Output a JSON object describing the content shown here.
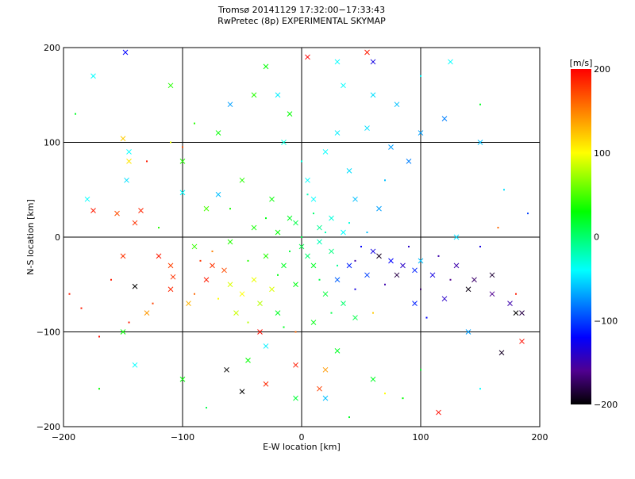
{
  "chart_data": {
    "type": "scatter",
    "title": "Tromsø 20141129 17:32:00−17:33:43",
    "subtitle": "RwPretec (8p) EXPERIMENTAL SKYMAP",
    "xlabel": "E-W location [km]",
    "ylabel": "N-S location [km]",
    "xlim": [
      -200,
      200
    ],
    "ylim": [
      -200,
      200
    ],
    "xticks": [
      "−200",
      "−100",
      "0",
      "100",
      "200"
    ],
    "yticks": [
      "−200",
      "−100",
      "0",
      "100",
      "200"
    ],
    "xtick_values": [
      -200,
      -100,
      0,
      100,
      200
    ],
    "ytick_values": [
      -200,
      -100,
      0,
      100,
      200
    ],
    "grid": true,
    "colorbar": {
      "label": "[m/s]",
      "range": [
        -200,
        200
      ],
      "ticks": [
        "200",
        "100",
        "0",
        "−100",
        "−200"
      ],
      "tick_values": [
        200,
        100,
        0,
        -100,
        -200
      ],
      "stops": [
        [
          -200,
          "#000000"
        ],
        [
          -160,
          "#500090"
        ],
        [
          -120,
          "#0000ff"
        ],
        [
          -40,
          "#00ffff"
        ],
        [
          30,
          "#00ff00"
        ],
        [
          100,
          "#ffff00"
        ],
        [
          150,
          "#ff8000"
        ],
        [
          200,
          "#ff0000"
        ]
      ]
    },
    "point_format": [
      "x_km",
      "y_km",
      "velocity_ms",
      "marker"
    ],
    "points": [
      [
        -175,
        28,
        190,
        "x"
      ],
      [
        -155,
        25,
        170,
        "x"
      ],
      [
        -140,
        15,
        180,
        "x"
      ],
      [
        -135,
        28,
        185,
        "x"
      ],
      [
        -120,
        -20,
        190,
        "x"
      ],
      [
        -110,
        -30,
        175,
        "x"
      ],
      [
        -108,
        -42,
        180,
        "x"
      ],
      [
        -110,
        -55,
        185,
        "x"
      ],
      [
        -80,
        -45,
        190,
        "x"
      ],
      [
        -75,
        -30,
        180,
        "x"
      ],
      [
        -65,
        -35,
        170,
        "x"
      ],
      [
        -160,
        -45,
        190,
        "."
      ],
      [
        5,
        190,
        200,
        "x"
      ],
      [
        55,
        195,
        190,
        "x"
      ],
      [
        -35,
        -100,
        195,
        "x"
      ],
      [
        -5,
        -135,
        190,
        "x"
      ],
      [
        15,
        -160,
        175,
        "x"
      ],
      [
        -30,
        -155,
        185,
        "x"
      ],
      [
        115,
        -185,
        195,
        "x"
      ],
      [
        185,
        -110,
        195,
        "x"
      ],
      [
        -170,
        -105,
        195,
        "."
      ],
      [
        -150,
        -20,
        180,
        "x"
      ],
      [
        -185,
        -75,
        190,
        "."
      ],
      [
        -125,
        -70,
        175,
        "."
      ],
      [
        -85,
        -25,
        180,
        "."
      ],
      [
        -90,
        -60,
        160,
        "."
      ],
      [
        -145,
        -90,
        190,
        "."
      ],
      [
        -130,
        80,
        190,
        "."
      ],
      [
        -100,
        95,
        170,
        "."
      ],
      [
        -195,
        -60,
        190,
        "."
      ],
      [
        60,
        -15,
        -130,
        "x"
      ],
      [
        75,
        -25,
        -120,
        "x"
      ],
      [
        85,
        -30,
        -140,
        "x"
      ],
      [
        95,
        -35,
        -110,
        "x"
      ],
      [
        110,
        -40,
        -130,
        "x"
      ],
      [
        130,
        -30,
        -150,
        "x"
      ],
      [
        145,
        -45,
        -170,
        "x"
      ],
      [
        160,
        -60,
        -160,
        "x"
      ],
      [
        175,
        -70,
        -150,
        "x"
      ],
      [
        185,
        -80,
        -180,
        "x"
      ],
      [
        120,
        -65,
        -140,
        "x"
      ],
      [
        95,
        -70,
        -110,
        "x"
      ],
      [
        55,
        -40,
        -100,
        "x"
      ],
      [
        40,
        -30,
        -110,
        "x"
      ],
      [
        30,
        -45,
        -90,
        "x"
      ],
      [
        65,
        -20,
        -190,
        "x"
      ],
      [
        80,
        -40,
        -180,
        "x"
      ],
      [
        160,
        -40,
        -185,
        "x"
      ],
      [
        -140,
        -52,
        -200,
        "x"
      ],
      [
        -63,
        -140,
        -200,
        "x"
      ],
      [
        -50,
        -163,
        -200,
        "x"
      ],
      [
        168,
        -122,
        -190,
        "x"
      ],
      [
        180,
        -80,
        -200,
        "x"
      ],
      [
        140,
        -55,
        -195,
        "x"
      ],
      [
        70,
        -50,
        -150,
        "."
      ],
      [
        90,
        -10,
        -140,
        "."
      ],
      [
        100,
        -55,
        -170,
        "."
      ],
      [
        115,
        -20,
        -150,
        "."
      ],
      [
        125,
        -45,
        -160,
        "."
      ],
      [
        150,
        -10,
        -130,
        "."
      ],
      [
        50,
        -10,
        -120,
        "."
      ],
      [
        45,
        -55,
        -130,
        "."
      ],
      [
        105,
        -85,
        -120,
        "."
      ],
      [
        60,
        185,
        -130,
        "x"
      ],
      [
        -148,
        195,
        -120,
        "x"
      ],
      [
        45,
        -25,
        -150,
        "."
      ],
      [
        -175,
        170,
        -40,
        "x"
      ],
      [
        -145,
        90,
        -40,
        "x"
      ],
      [
        -147,
        60,
        -50,
        "x"
      ],
      [
        -100,
        47,
        -40,
        "x"
      ],
      [
        -70,
        45,
        -60,
        "x"
      ],
      [
        -20,
        150,
        -45,
        "x"
      ],
      [
        35,
        160,
        -40,
        "x"
      ],
      [
        60,
        150,
        -50,
        "x"
      ],
      [
        80,
        140,
        -60,
        "x"
      ],
      [
        100,
        110,
        -70,
        "x"
      ],
      [
        120,
        125,
        -80,
        "x"
      ],
      [
        150,
        100,
        -60,
        "x"
      ],
      [
        90,
        80,
        -80,
        "x"
      ],
      [
        55,
        115,
        -50,
        "x"
      ],
      [
        -60,
        140,
        -70,
        "x"
      ],
      [
        30,
        185,
        -40,
        "x"
      ],
      [
        -180,
        40,
        -40,
        "x"
      ],
      [
        -140,
        -135,
        -40,
        "x"
      ],
      [
        -30,
        -115,
        -45,
        "x"
      ],
      [
        20,
        -170,
        -60,
        "x"
      ],
      [
        140,
        -100,
        -70,
        "x"
      ],
      [
        130,
        0,
        -50,
        "x"
      ],
      [
        100,
        -25,
        -60,
        "x"
      ],
      [
        20,
        90,
        -40,
        "x"
      ],
      [
        40,
        70,
        -50,
        "x"
      ],
      [
        10,
        40,
        -40,
        "x"
      ],
      [
        25,
        20,
        -30,
        "x"
      ],
      [
        35,
        5,
        -40,
        "x"
      ],
      [
        15,
        -5,
        -20,
        "x"
      ],
      [
        5,
        60,
        -40,
        "x"
      ],
      [
        45,
        40,
        -60,
        "x"
      ],
      [
        65,
        30,
        -70,
        "x"
      ],
      [
        30,
        110,
        -45,
        "x"
      ],
      [
        75,
        95,
        -70,
        "x"
      ],
      [
        -15,
        100,
        -30,
        "x"
      ],
      [
        125,
        185,
        -40,
        "x"
      ],
      [
        -10,
        20,
        20,
        "x"
      ],
      [
        -20,
        5,
        30,
        "x"
      ],
      [
        0,
        -10,
        10,
        "x"
      ],
      [
        10,
        -30,
        20,
        "x"
      ],
      [
        -5,
        -50,
        25,
        "x"
      ],
      [
        20,
        -60,
        15,
        "x"
      ],
      [
        -30,
        -20,
        40,
        "x"
      ],
      [
        -40,
        10,
        35,
        "x"
      ],
      [
        -25,
        40,
        30,
        "x"
      ],
      [
        -50,
        60,
        40,
        "x"
      ],
      [
        -80,
        30,
        50,
        "x"
      ],
      [
        -90,
        -10,
        45,
        "x"
      ],
      [
        -60,
        -5,
        40,
        "x"
      ],
      [
        -100,
        80,
        40,
        "x"
      ],
      [
        -70,
        110,
        30,
        "x"
      ],
      [
        -110,
        160,
        40,
        "x"
      ],
      [
        -150,
        -100,
        30,
        "x"
      ],
      [
        -100,
        -150,
        30,
        "x"
      ],
      [
        -20,
        -80,
        20,
        "x"
      ],
      [
        10,
        -90,
        25,
        "x"
      ],
      [
        30,
        -120,
        20,
        "x"
      ],
      [
        -5,
        -170,
        15,
        "x"
      ],
      [
        45,
        -85,
        10,
        "x"
      ],
      [
        -45,
        -130,
        30,
        "x"
      ],
      [
        5,
        -20,
        0,
        "x"
      ],
      [
        15,
        10,
        -10,
        "x"
      ],
      [
        -5,
        15,
        10,
        "x"
      ],
      [
        25,
        -15,
        -5,
        "x"
      ],
      [
        -15,
        -30,
        20,
        "x"
      ],
      [
        35,
        -70,
        0,
        "x"
      ],
      [
        -10,
        130,
        30,
        "x"
      ],
      [
        -40,
        150,
        40,
        "x"
      ],
      [
        -30,
        180,
        30,
        "x"
      ],
      [
        60,
        -150,
        20,
        "x"
      ],
      [
        85,
        -170,
        30,
        "."
      ],
      [
        -120,
        10,
        40,
        "."
      ],
      [
        -60,
        -50,
        90,
        "x"
      ],
      [
        -50,
        -60,
        100,
        "x"
      ],
      [
        -40,
        -45,
        95,
        "x"
      ],
      [
        -35,
        -70,
        80,
        "x"
      ],
      [
        -55,
        -80,
        85,
        "x"
      ],
      [
        -25,
        -55,
        90,
        "x"
      ],
      [
        -70,
        -65,
        100,
        "."
      ],
      [
        -45,
        -90,
        80,
        "."
      ],
      [
        -145,
        80,
        110,
        "x"
      ],
      [
        -110,
        100,
        95,
        "."
      ],
      [
        -150,
        104,
        120,
        "x"
      ],
      [
        70,
        -165,
        100,
        "."
      ],
      [
        -130,
        -80,
        140,
        "x"
      ],
      [
        -95,
        -70,
        130,
        "x"
      ],
      [
        20,
        -140,
        140,
        "x"
      ],
      [
        60,
        -80,
        120,
        "."
      ],
      [
        -5,
        -100,
        160,
        "."
      ],
      [
        -75,
        -15,
        150,
        "."
      ],
      [
        0,
        0,
        10,
        "."
      ],
      [
        20,
        5,
        -20,
        "."
      ],
      [
        -10,
        -15,
        15,
        "."
      ],
      [
        30,
        -30,
        -10,
        "."
      ],
      [
        10,
        25,
        0,
        "."
      ],
      [
        -20,
        -40,
        25,
        "."
      ],
      [
        40,
        15,
        -30,
        "."
      ],
      [
        -30,
        20,
        25,
        "."
      ],
      [
        15,
        -45,
        10,
        "."
      ],
      [
        5,
        45,
        -20,
        "."
      ],
      [
        -45,
        -25,
        40,
        "."
      ],
      [
        55,
        5,
        -60,
        "."
      ],
      [
        25,
        -80,
        10,
        "."
      ],
      [
        -15,
        -95,
        20,
        "."
      ],
      [
        0,
        80,
        -30,
        "."
      ],
      [
        -60,
        30,
        35,
        "."
      ],
      [
        70,
        60,
        -60,
        "."
      ],
      [
        -90,
        120,
        40,
        "."
      ],
      [
        100,
        170,
        -40,
        "."
      ],
      [
        150,
        140,
        20,
        "."
      ],
      [
        170,
        50,
        -50,
        "."
      ],
      [
        190,
        25,
        -100,
        "."
      ],
      [
        165,
        10,
        160,
        "."
      ],
      [
        180,
        -60,
        190,
        "."
      ],
      [
        -170,
        -160,
        30,
        "."
      ],
      [
        150,
        -160,
        -40,
        "."
      ],
      [
        100,
        -140,
        20,
        "."
      ],
      [
        -80,
        -180,
        10,
        "."
      ],
      [
        40,
        -190,
        20,
        "."
      ],
      [
        -190,
        130,
        20,
        "."
      ]
    ]
  }
}
